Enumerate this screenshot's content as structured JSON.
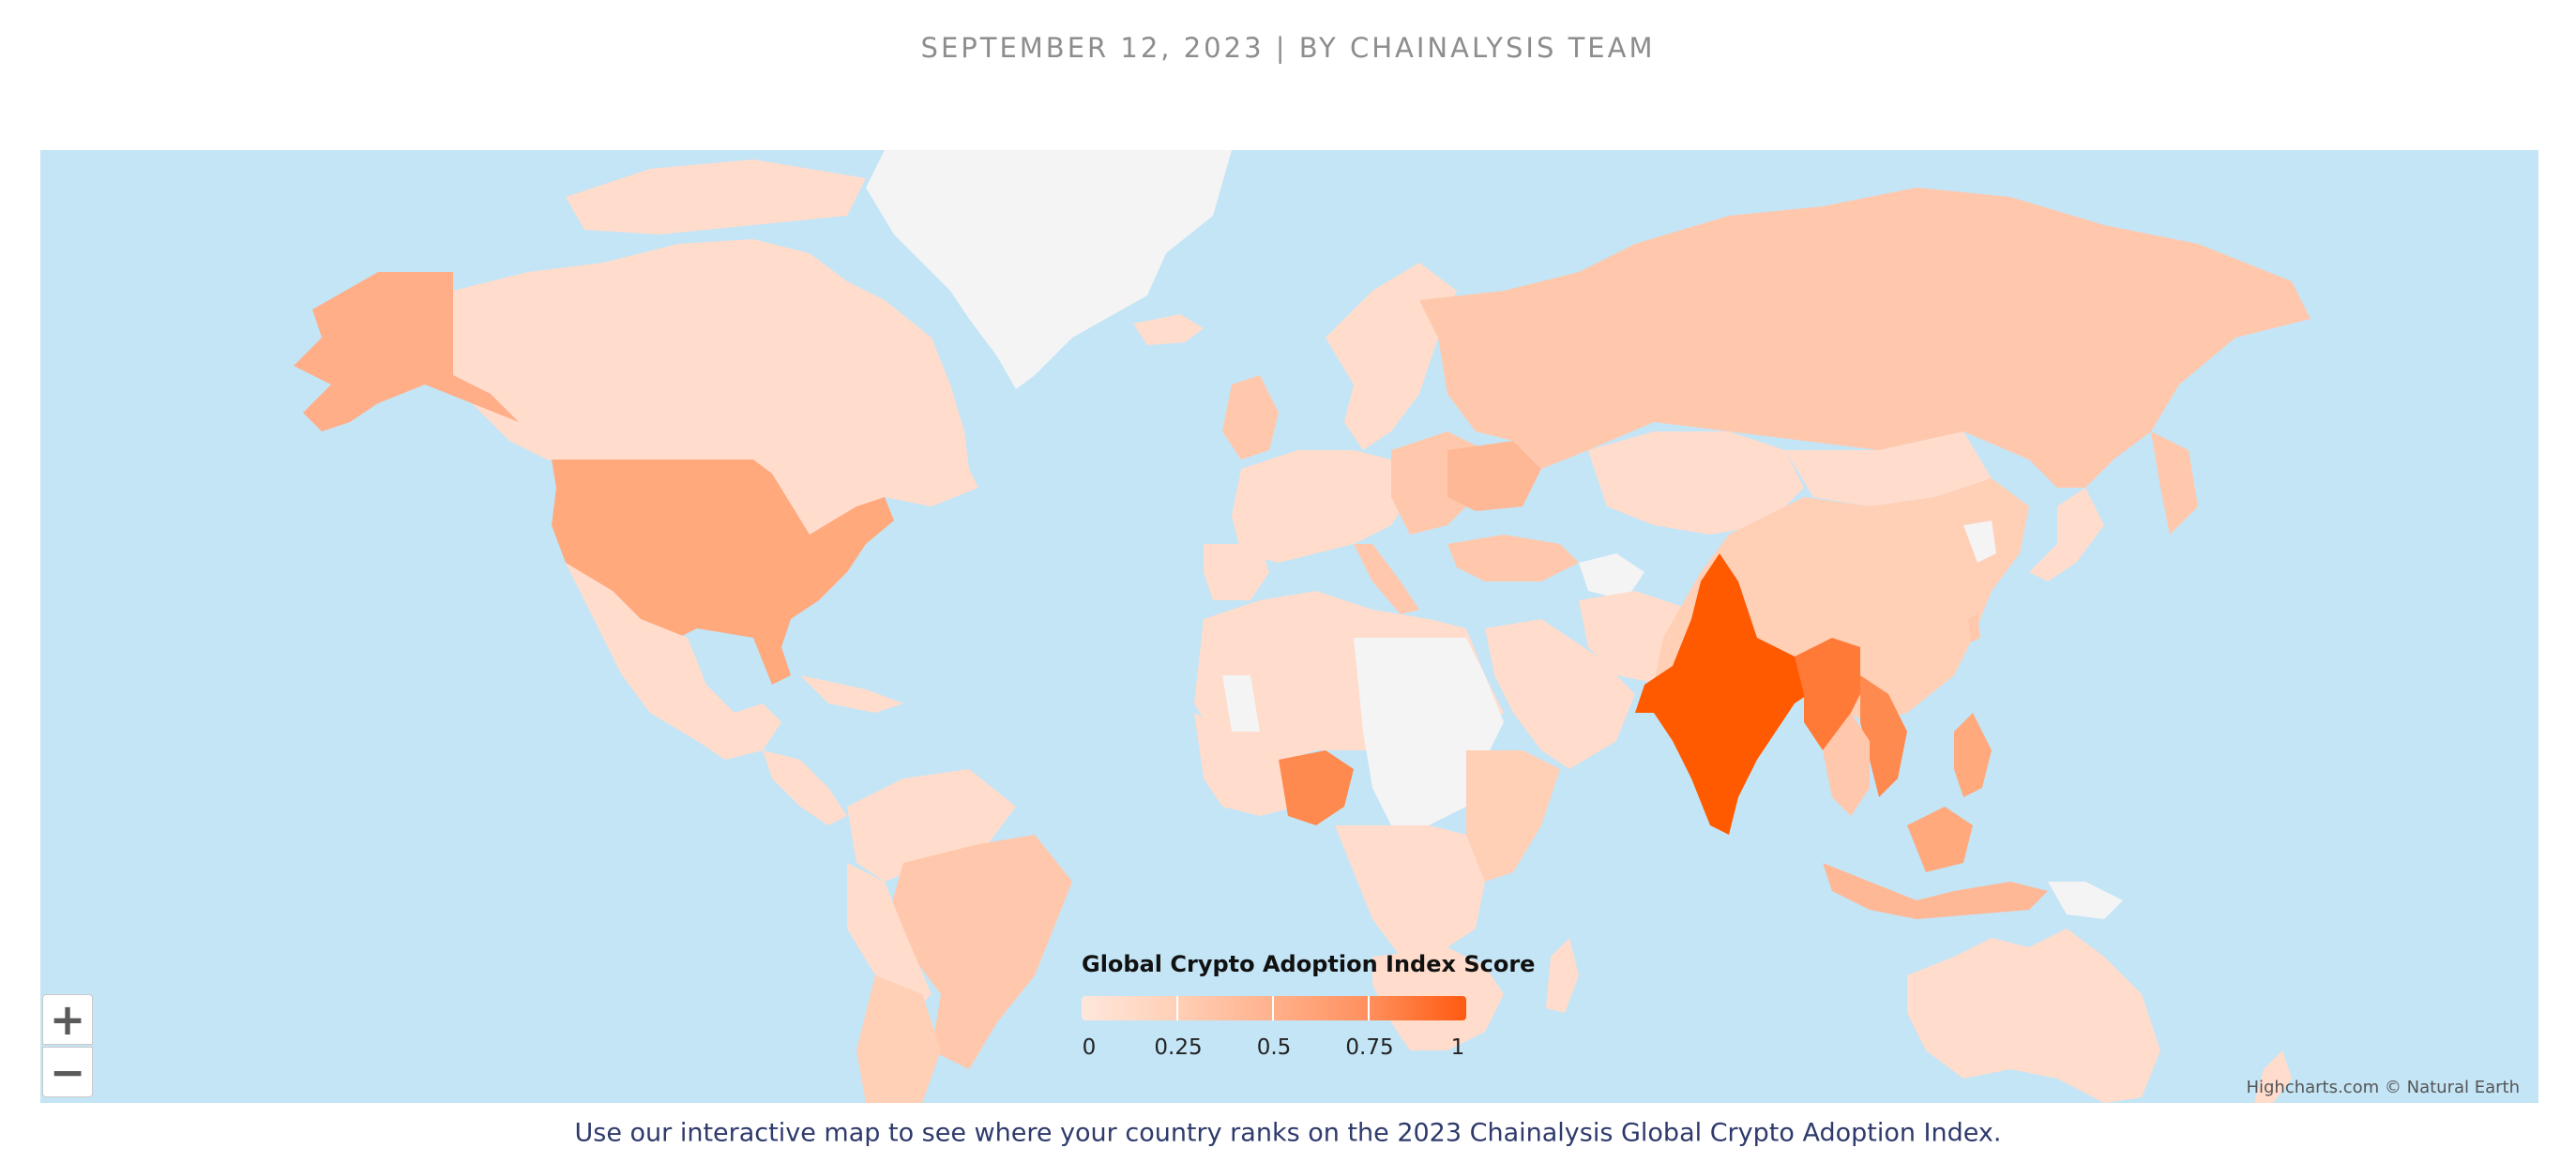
{
  "byline": "SEPTEMBER 12, 2023 | BY CHAINALYSIS TEAM",
  "caption": "Use our interactive map to see where your country ranks on the 2023 Chainalysis Global Crypto Adoption Index.",
  "credits": "Highcharts.com © Natural Earth",
  "zoom": {
    "in_label": "+",
    "out_label": "−"
  },
  "legend": {
    "title": "Global Crypto Adoption Index Score",
    "ticks": [
      "0",
      "0.25",
      "0.5",
      "0.75",
      "1"
    ],
    "color_min": "#ffe7dc",
    "color_max": "#ff5a10"
  },
  "colors": {
    "ocean": "#c4e5f6",
    "no_data": "#f4f4f4",
    "very_low": "#ffdccc",
    "low": "#ffc8ad",
    "mid": "#ffa97d",
    "high": "#ff8a50",
    "top": "#ff5a00"
  },
  "highlights": [
    {
      "region": "India",
      "level": "top"
    },
    {
      "region": "Nigeria",
      "level": "high"
    },
    {
      "region": "Vietnam",
      "level": "high"
    },
    {
      "region": "United States",
      "level": "mid"
    },
    {
      "region": "Alaska",
      "level": "mid"
    },
    {
      "region": "Ukraine",
      "level": "mid"
    },
    {
      "region": "Greenland",
      "level": "no_data"
    }
  ]
}
